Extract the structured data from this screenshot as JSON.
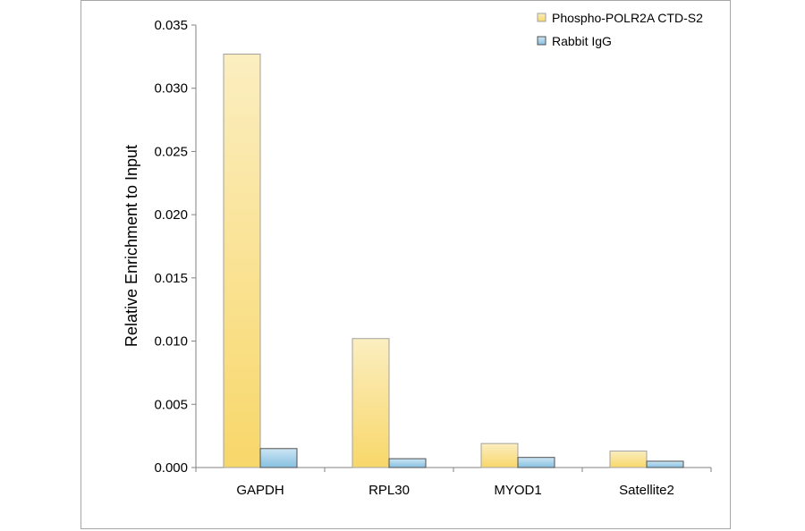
{
  "chart_data": {
    "type": "bar",
    "title": "",
    "xlabel": "",
    "ylabel": "Relative Enrichment to Input",
    "ylim": [
      0,
      0.035
    ],
    "yticks": [
      "0.000",
      "0.005",
      "0.010",
      "0.015",
      "0.020",
      "0.025",
      "0.030",
      "0.035"
    ],
    "yticks_values": [
      0,
      0.005,
      0.01,
      0.015,
      0.02,
      0.025,
      0.03,
      0.035
    ],
    "categories": [
      "GAPDH",
      "RPL30",
      "MYOD1",
      "Satellite2"
    ],
    "series": [
      {
        "name": "Phospho-POLR2A CTD-S2",
        "values": [
          0.0327,
          0.0102,
          0.0019,
          0.0013
        ],
        "color": "#f9d96b"
      },
      {
        "name": "Rabbit IgG",
        "values": [
          0.0015,
          0.0007,
          0.0008,
          0.0005
        ],
        "color": "#8ec5e3"
      }
    ],
    "legend_position": "top-right",
    "grid": false
  }
}
